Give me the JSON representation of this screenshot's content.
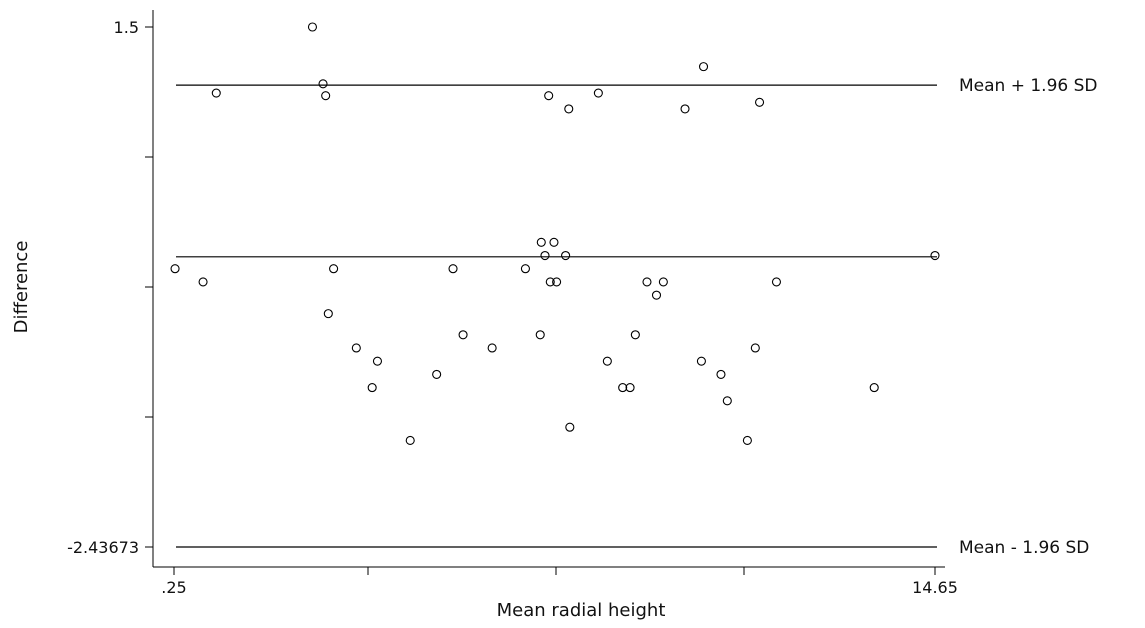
{
  "chart_data": {
    "type": "scatter",
    "title": "",
    "xlabel": "Mean radial height",
    "ylabel": "Difference",
    "xlim": [
      0.25,
      14.65
    ],
    "ylim": [
      -2.43673,
      1.5
    ],
    "x_tick_labels": [
      ".25",
      "14.65"
    ],
    "y_tick_labels": [
      "1.5",
      "-2.43673"
    ],
    "grid": false,
    "reference_lines": [
      {
        "name": "upper-limit",
        "y": 1.06,
        "label": "Mean + 1.96 SD"
      },
      {
        "name": "mean",
        "y": -0.24,
        "label": ""
      },
      {
        "name": "lower-limit",
        "y": -2.43673,
        "label": "Mean - 1.96 SD"
      }
    ],
    "points": [
      [
        0.27,
        -0.33
      ],
      [
        0.8,
        -0.43
      ],
      [
        1.05,
        1.0
      ],
      [
        2.87,
        1.5
      ],
      [
        3.07,
        1.07
      ],
      [
        3.12,
        0.98
      ],
      [
        3.17,
        -0.67
      ],
      [
        3.27,
        -0.33
      ],
      [
        3.7,
        -0.93
      ],
      [
        4.0,
        -1.23
      ],
      [
        4.1,
        -1.03
      ],
      [
        4.72,
        -1.63
      ],
      [
        5.22,
        -1.13
      ],
      [
        5.53,
        -0.33
      ],
      [
        5.72,
        -0.83
      ],
      [
        6.27,
        -0.93
      ],
      [
        6.9,
        -0.33
      ],
      [
        7.18,
        -0.83
      ],
      [
        7.2,
        -0.13
      ],
      [
        7.27,
        -0.23
      ],
      [
        7.34,
        0.98
      ],
      [
        7.37,
        -0.43
      ],
      [
        7.44,
        -0.13
      ],
      [
        7.49,
        -0.43
      ],
      [
        7.66,
        -0.23
      ],
      [
        7.74,
        -1.53
      ],
      [
        7.72,
        0.88
      ],
      [
        8.28,
        1.0
      ],
      [
        8.45,
        -1.03
      ],
      [
        8.74,
        -1.23
      ],
      [
        8.88,
        -1.23
      ],
      [
        8.98,
        -0.83
      ],
      [
        9.2,
        -0.43
      ],
      [
        9.38,
        -0.53
      ],
      [
        9.51,
        -0.43
      ],
      [
        9.92,
        0.88
      ],
      [
        10.23,
        -1.03
      ],
      [
        10.27,
        1.2
      ],
      [
        10.6,
        -1.13
      ],
      [
        10.72,
        -1.33
      ],
      [
        11.1,
        -1.63
      ],
      [
        11.25,
        -0.93
      ],
      [
        11.33,
        0.93
      ],
      [
        11.65,
        -0.43
      ],
      [
        13.5,
        -1.23
      ],
      [
        14.65,
        -0.23
      ]
    ]
  }
}
